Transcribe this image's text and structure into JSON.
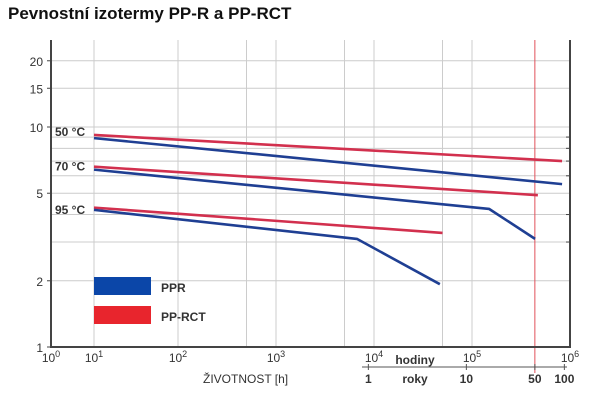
{
  "title": "Pevnostní izotermy PP-R a PP-RCT",
  "chart_data": {
    "type": "line",
    "title": "Pevnostní izotermy PP-R a PP-RCT",
    "xlabel": "ŽIVOTNOST [h]",
    "ylabel": "",
    "xscale": "log",
    "yscale": "log",
    "xlim": [
      1,
      1000000
    ],
    "ylim": [
      1,
      25
    ],
    "x_ticks": [
      {
        "v": 1,
        "exp": "0"
      },
      {
        "v": 10,
        "exp": "1"
      },
      {
        "v": 100,
        "exp": "2"
      },
      {
        "v": 1000,
        "exp": "3"
      },
      {
        "v": 10000,
        "exp": "4"
      },
      {
        "v": 100000,
        "exp": "5"
      },
      {
        "v": 1000000,
        "exp": "6"
      }
    ],
    "y_ticks": [
      1,
      2,
      5,
      10,
      15,
      20
    ],
    "grid": true,
    "secondary_axis": {
      "hours_label": "hodiny",
      "years_label": "roky",
      "years_ticks": [
        {
          "label": "1",
          "hours": 8760
        },
        {
          "label": "10",
          "hours": 87600
        },
        {
          "label": "50",
          "hours": 438000
        },
        {
          "label": "100",
          "hours": 876000
        }
      ]
    },
    "reference_line": {
      "label": "50",
      "hours": 438000,
      "color": "#e0505a"
    },
    "temperature_labels": [
      {
        "text": "50 °C",
        "y": 9.5
      },
      {
        "text": "70 °C",
        "y": 6.6
      },
      {
        "text": "95 °C",
        "y": 4.2
      }
    ],
    "legend": {
      "placement": "bottom-left",
      "entries": [
        {
          "name": "PPR",
          "color": "#0b46a8"
        },
        {
          "name": "PP-RCT",
          "color": "#e8252d"
        }
      ]
    },
    "series": [
      {
        "material": "PP-RCT",
        "temp": "50 °C",
        "color": "#d2304e",
        "points": [
          [
            10,
            9.2
          ],
          [
            830000,
            7.0
          ]
        ]
      },
      {
        "material": "PPR",
        "temp": "50 °C",
        "color": "#1f3f93",
        "points": [
          [
            10,
            8.9
          ],
          [
            830000,
            5.5
          ]
        ]
      },
      {
        "material": "PP-RCT",
        "temp": "70 °C",
        "color": "#d2304e",
        "points": [
          [
            10,
            6.6
          ],
          [
            470000,
            4.9
          ]
        ]
      },
      {
        "material": "PPR",
        "temp": "70 °C",
        "color": "#1f3f93",
        "points": [
          [
            10,
            6.4
          ],
          [
            150000,
            4.24
          ],
          [
            440000,
            3.1
          ]
        ]
      },
      {
        "material": "PP-RCT",
        "temp": "95 °C",
        "color": "#d2304e",
        "points": [
          [
            10,
            4.3
          ],
          [
            50000,
            3.3
          ]
        ]
      },
      {
        "material": "PPR",
        "temp": "95 °C",
        "color": "#1f3f93",
        "points": [
          [
            10,
            4.2
          ],
          [
            6700,
            3.1
          ],
          [
            47000,
            1.93
          ]
        ]
      }
    ]
  }
}
